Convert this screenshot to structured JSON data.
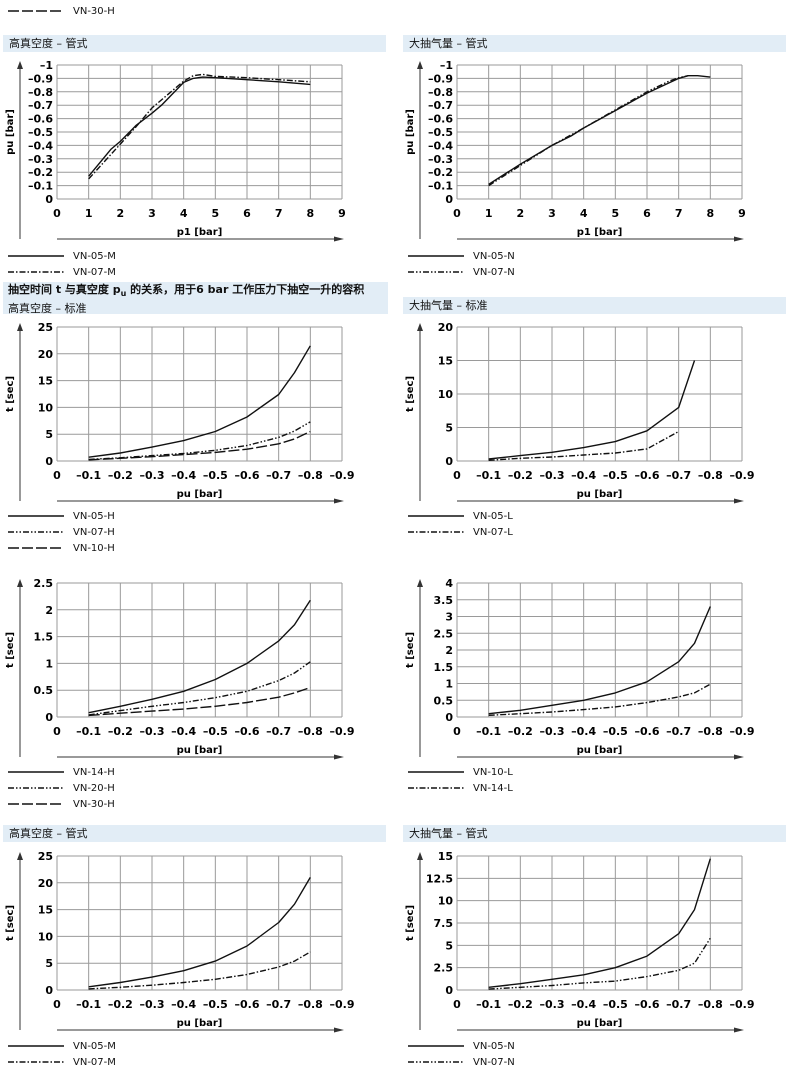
{
  "top_legend": {
    "label": "VN-30-H",
    "style": "long-dash"
  },
  "section_title": {
    "before": "抽空时间 t 与真空度 p",
    "sub": "u",
    "after": " 的关系，用于6 bar 工作压力下抽空一升的容积"
  },
  "headers": {
    "r1_left": "高真空度 – 管式",
    "r1_right": "大抽气量 – 管式",
    "r2_left": "高真空度 – 标准",
    "r2_right": "大抽气量 – 标准",
    "r4_left": "高真空度 – 管式",
    "r4_right": "大抽气量 – 管式"
  },
  "colors": {
    "header_bg": "#e2edf6",
    "grid": "#9a9a9a",
    "line": "#111111"
  },
  "chart_data": [
    {
      "type": "line",
      "xlabel": "p1 [bar]",
      "ylabel": "pu [bar]",
      "xlim": [
        0,
        9
      ],
      "ylim": [
        0,
        -1
      ],
      "grid": true,
      "xticks": [
        0,
        1,
        2,
        3,
        4,
        5,
        6,
        7,
        8,
        9
      ],
      "xtick_labels": [
        "0",
        "1",
        "2",
        "3",
        "4",
        "5",
        "6",
        "7",
        "8",
        "9"
      ],
      "yticks": [
        0,
        -0.1,
        -0.2,
        -0.3,
        -0.4,
        -0.5,
        -0.6,
        -0.7,
        -0.8,
        -0.9,
        -1
      ],
      "ytick_labels": [
        "0",
        "–0.1",
        "–0.2",
        "–0.3",
        "–0.4",
        "–0.5",
        "–0.6",
        "–0.7",
        "–0.8",
        "–0.9",
        "–1"
      ],
      "series": [
        {
          "name": "VN-05-M",
          "style": "solid",
          "x": [
            1,
            1.7,
            2,
            2.5,
            3,
            3.3,
            4,
            4.3,
            4.6,
            5,
            6,
            7,
            8
          ],
          "y": [
            -0.17,
            -0.37,
            -0.43,
            -0.55,
            -0.64,
            -0.7,
            -0.87,
            -0.9,
            -0.91,
            -0.905,
            -0.89,
            -0.875,
            -0.855
          ]
        },
        {
          "name": "VN-07-M",
          "style": "dash-dot",
          "x": [
            1,
            2,
            2.5,
            3,
            4,
            4.3,
            4.6,
            5,
            6,
            7,
            8
          ],
          "y": [
            -0.15,
            -0.41,
            -0.54,
            -0.68,
            -0.88,
            -0.92,
            -0.93,
            -0.915,
            -0.905,
            -0.89,
            -0.875
          ]
        }
      ]
    },
    {
      "type": "line",
      "xlabel": "p1 [bar]",
      "ylabel": "pu [bar]",
      "xlim": [
        0,
        9
      ],
      "ylim": [
        0,
        -1
      ],
      "grid": true,
      "xticks": [
        0,
        1,
        2,
        3,
        4,
        5,
        6,
        7,
        8,
        9
      ],
      "xtick_labels": [
        "0",
        "1",
        "2",
        "3",
        "4",
        "5",
        "6",
        "7",
        "8",
        "9"
      ],
      "yticks": [
        0,
        -0.1,
        -0.2,
        -0.3,
        -0.4,
        -0.5,
        -0.6,
        -0.7,
        -0.8,
        -0.9,
        -1
      ],
      "ytick_labels": [
        "0",
        "–0.1",
        "–0.2",
        "–0.3",
        "–0.4",
        "–0.5",
        "–0.6",
        "–0.7",
        "–0.8",
        "–0.9",
        "–1"
      ],
      "series": [
        {
          "name": "VN-05-N",
          "style": "solid",
          "x": [
            1,
            2,
            3,
            3.6,
            4,
            5,
            6,
            7,
            7.3,
            7.6,
            8
          ],
          "y": [
            -0.11,
            -0.26,
            -0.4,
            -0.47,
            -0.53,
            -0.66,
            -0.79,
            -0.9,
            -0.92,
            -0.92,
            -0.91
          ]
        },
        {
          "name": "VN-07-N",
          "style": "dash-dot-dot",
          "x": [
            1,
            2,
            3,
            4,
            5,
            6,
            6.7,
            7,
            7.3
          ],
          "y": [
            -0.1,
            -0.25,
            -0.4,
            -0.53,
            -0.665,
            -0.8,
            -0.88,
            -0.905,
            -0.92
          ]
        }
      ]
    },
    {
      "type": "line",
      "xlabel": "pu [bar]",
      "ylabel": "t [sec]",
      "xlim": [
        0,
        -0.9
      ],
      "ylim": [
        0,
        25
      ],
      "grid": true,
      "xticks": [
        0,
        -0.1,
        -0.2,
        -0.3,
        -0.4,
        -0.5,
        -0.6,
        -0.7,
        -0.8,
        -0.9
      ],
      "xtick_labels": [
        "0",
        "–0.1",
        "–0.2",
        "–0.3",
        "–0.4",
        "–0.5",
        "–0.6",
        "–0.7",
        "–0.8",
        "–0.9"
      ],
      "yticks": [
        0,
        5,
        10,
        15,
        20,
        25
      ],
      "ytick_labels": [
        "0",
        "5",
        "10",
        "15",
        "20",
        "25"
      ],
      "series": [
        {
          "name": "VN-05-H",
          "style": "solid",
          "x": [
            -0.1,
            -0.2,
            -0.3,
            -0.4,
            -0.5,
            -0.6,
            -0.7,
            -0.75,
            -0.8
          ],
          "y": [
            0.7,
            1.5,
            2.6,
            3.8,
            5.5,
            8.2,
            12.4,
            16.5,
            21.5
          ]
        },
        {
          "name": "VN-07-H",
          "style": "dash-dot-dot",
          "x": [
            -0.1,
            -0.2,
            -0.3,
            -0.4,
            -0.5,
            -0.6,
            -0.7,
            -0.75,
            -0.8
          ],
          "y": [
            0.3,
            0.6,
            1.0,
            1.4,
            2.0,
            2.9,
            4.4,
            5.6,
            7.3
          ]
        },
        {
          "name": "VN-10-H",
          "style": "long-dash",
          "x": [
            -0.1,
            -0.2,
            -0.3,
            -0.4,
            -0.5,
            -0.6,
            -0.7,
            -0.75,
            -0.8
          ],
          "y": [
            0.2,
            0.5,
            0.8,
            1.2,
            1.6,
            2.2,
            3.2,
            4.1,
            5.5
          ]
        }
      ]
    },
    {
      "type": "line",
      "xlabel": "pu [bar]",
      "ylabel": "t [sec]",
      "xlim": [
        0,
        -0.9
      ],
      "ylim": [
        0,
        20
      ],
      "grid": true,
      "xticks": [
        0,
        -0.1,
        -0.2,
        -0.3,
        -0.4,
        -0.5,
        -0.6,
        -0.7,
        -0.8,
        -0.9
      ],
      "xtick_labels": [
        "0",
        "–0.1",
        "–0.2",
        "–0.3",
        "–0.4",
        "–0.5",
        "–0.6",
        "–0.7",
        "–0.8",
        "–0.9"
      ],
      "yticks": [
        0,
        5,
        10,
        15,
        20
      ],
      "ytick_labels": [
        "0",
        "5",
        "10",
        "15",
        "20"
      ],
      "series": [
        {
          "name": "VN-05-L",
          "style": "solid",
          "x": [
            -0.1,
            -0.2,
            -0.3,
            -0.4,
            -0.5,
            -0.6,
            -0.7,
            -0.75
          ],
          "y": [
            0.3,
            0.8,
            1.3,
            2.0,
            2.9,
            4.5,
            8.0,
            15.0
          ]
        },
        {
          "name": "VN-07-L",
          "style": "dash-dot",
          "x": [
            -0.1,
            -0.2,
            -0.3,
            -0.4,
            -0.5,
            -0.6,
            -0.7
          ],
          "y": [
            0.1,
            0.4,
            0.6,
            0.9,
            1.2,
            1.8,
            4.4
          ]
        }
      ]
    },
    {
      "type": "line",
      "xlabel": "pu [bar]",
      "ylabel": "t [sec]",
      "xlim": [
        0,
        -0.9
      ],
      "ylim": [
        0,
        2.5
      ],
      "grid": true,
      "xticks": [
        0,
        -0.1,
        -0.2,
        -0.3,
        -0.4,
        -0.5,
        -0.6,
        -0.7,
        -0.8,
        -0.9
      ],
      "xtick_labels": [
        "0",
        "–0.1",
        "–0.2",
        "–0.3",
        "–0.4",
        "–0.5",
        "–0.6",
        "–0.7",
        "–0.8",
        "–0.9"
      ],
      "yticks": [
        0,
        0.5,
        1,
        1.5,
        2,
        2.5
      ],
      "ytick_labels": [
        "0",
        "0.5",
        "1",
        "1.5",
        "2",
        "2.5"
      ],
      "series": [
        {
          "name": "VN-14-H",
          "style": "solid",
          "x": [
            -0.1,
            -0.2,
            -0.3,
            -0.4,
            -0.5,
            -0.6,
            -0.7,
            -0.75,
            -0.8
          ],
          "y": [
            0.08,
            0.2,
            0.33,
            0.48,
            0.7,
            1.0,
            1.42,
            1.72,
            2.18
          ]
        },
        {
          "name": "VN-20-H",
          "style": "dash-dot-dot",
          "x": [
            -0.1,
            -0.2,
            -0.3,
            -0.4,
            -0.5,
            -0.6,
            -0.7,
            -0.75,
            -0.8
          ],
          "y": [
            0.04,
            0.12,
            0.2,
            0.27,
            0.36,
            0.48,
            0.68,
            0.82,
            1.03
          ]
        },
        {
          "name": "VN-30-H",
          "style": "long-dash",
          "x": [
            -0.1,
            -0.2,
            -0.3,
            -0.4,
            -0.5,
            -0.6,
            -0.7,
            -0.75,
            -0.8
          ],
          "y": [
            0.03,
            0.07,
            0.11,
            0.15,
            0.2,
            0.27,
            0.37,
            0.45,
            0.55
          ]
        }
      ]
    },
    {
      "type": "line",
      "xlabel": "pu [bar]",
      "ylabel": "t [sec]",
      "xlim": [
        0,
        -0.9
      ],
      "ylim": [
        0,
        4
      ],
      "grid": true,
      "xticks": [
        0,
        -0.1,
        -0.2,
        -0.3,
        -0.4,
        -0.5,
        -0.6,
        -0.7,
        -0.8,
        -0.9
      ],
      "xtick_labels": [
        "0",
        "–0.1",
        "–0.2",
        "–0.3",
        "–0.4",
        "–0.5",
        "–0.6",
        "–0.7",
        "–0.8",
        "–0.9"
      ],
      "yticks": [
        0,
        0.5,
        1,
        1.5,
        2,
        2.5,
        3,
        3.5,
        4
      ],
      "ytick_labels": [
        "0",
        "0.5",
        "1",
        "1.5",
        "2",
        "2.5",
        "3",
        "3.5",
        "4"
      ],
      "series": [
        {
          "name": "VN-10-L",
          "style": "solid",
          "x": [
            -0.1,
            -0.2,
            -0.3,
            -0.4,
            -0.5,
            -0.6,
            -0.7,
            -0.75,
            -0.8
          ],
          "y": [
            0.1,
            0.2,
            0.35,
            0.5,
            0.72,
            1.05,
            1.65,
            2.2,
            3.3
          ]
        },
        {
          "name": "VN-14-L",
          "style": "dash-dot",
          "x": [
            -0.1,
            -0.2,
            -0.3,
            -0.4,
            -0.5,
            -0.6,
            -0.7,
            -0.75,
            -0.8
          ],
          "y": [
            0.05,
            0.1,
            0.15,
            0.22,
            0.3,
            0.43,
            0.6,
            0.72,
            0.98
          ]
        }
      ]
    },
    {
      "type": "line",
      "xlabel": "pu [bar]",
      "ylabel": "t [sec]",
      "xlim": [
        0,
        -0.9
      ],
      "ylim": [
        0,
        25
      ],
      "grid": true,
      "xticks": [
        0,
        -0.1,
        -0.2,
        -0.3,
        -0.4,
        -0.5,
        -0.6,
        -0.7,
        -0.8,
        -0.9
      ],
      "xtick_labels": [
        "0",
        "–0.1",
        "–0.2",
        "–0.3",
        "–0.4",
        "–0.5",
        "–0.6",
        "–0.7",
        "–0.8",
        "–0.9"
      ],
      "yticks": [
        0,
        5,
        10,
        15,
        20,
        25
      ],
      "ytick_labels": [
        "0",
        "5",
        "10",
        "15",
        "20",
        "25"
      ],
      "series": [
        {
          "name": "VN-05-M",
          "style": "solid",
          "x": [
            -0.1,
            -0.2,
            -0.3,
            -0.4,
            -0.5,
            -0.6,
            -0.7,
            -0.75,
            -0.8
          ],
          "y": [
            0.6,
            1.4,
            2.4,
            3.6,
            5.4,
            8.2,
            12.6,
            16.0,
            21.0
          ]
        },
        {
          "name": "VN-07-M",
          "style": "dash-dot",
          "x": [
            -0.1,
            -0.2,
            -0.3,
            -0.4,
            -0.5,
            -0.6,
            -0.7,
            -0.75,
            -0.8
          ],
          "y": [
            0.2,
            0.5,
            0.9,
            1.4,
            2.0,
            2.9,
            4.3,
            5.4,
            7.1
          ]
        }
      ]
    },
    {
      "type": "line",
      "xlabel": "pu [bar]",
      "ylabel": "t [sec]",
      "xlim": [
        0,
        -0.9
      ],
      "ylim": [
        0,
        15
      ],
      "grid": true,
      "xticks": [
        0,
        -0.1,
        -0.2,
        -0.3,
        -0.4,
        -0.5,
        -0.6,
        -0.7,
        -0.8,
        -0.9
      ],
      "xtick_labels": [
        "0",
        "–0.1",
        "–0.2",
        "–0.3",
        "–0.4",
        "–0.5",
        "–0.6",
        "–0.7",
        "–0.8",
        "–0.9"
      ],
      "yticks": [
        0,
        2.5,
        5,
        7.5,
        10,
        12.5,
        15
      ],
      "ytick_labels": [
        "0",
        "2.5",
        "5",
        "7.5",
        "10",
        "12.5",
        "15"
      ],
      "series": [
        {
          "name": "VN-05-N",
          "style": "solid",
          "x": [
            -0.1,
            -0.2,
            -0.3,
            -0.4,
            -0.5,
            -0.6,
            -0.7,
            -0.75,
            -0.8
          ],
          "y": [
            0.3,
            0.7,
            1.2,
            1.7,
            2.5,
            3.8,
            6.3,
            9.0,
            14.7
          ]
        },
        {
          "name": "VN-07-N",
          "style": "dash-dot-dot",
          "x": [
            -0.1,
            -0.2,
            -0.3,
            -0.4,
            -0.5,
            -0.6,
            -0.7,
            -0.75,
            -0.8
          ],
          "y": [
            0.1,
            0.3,
            0.5,
            0.8,
            1.0,
            1.5,
            2.2,
            3.0,
            5.8
          ]
        }
      ]
    }
  ]
}
